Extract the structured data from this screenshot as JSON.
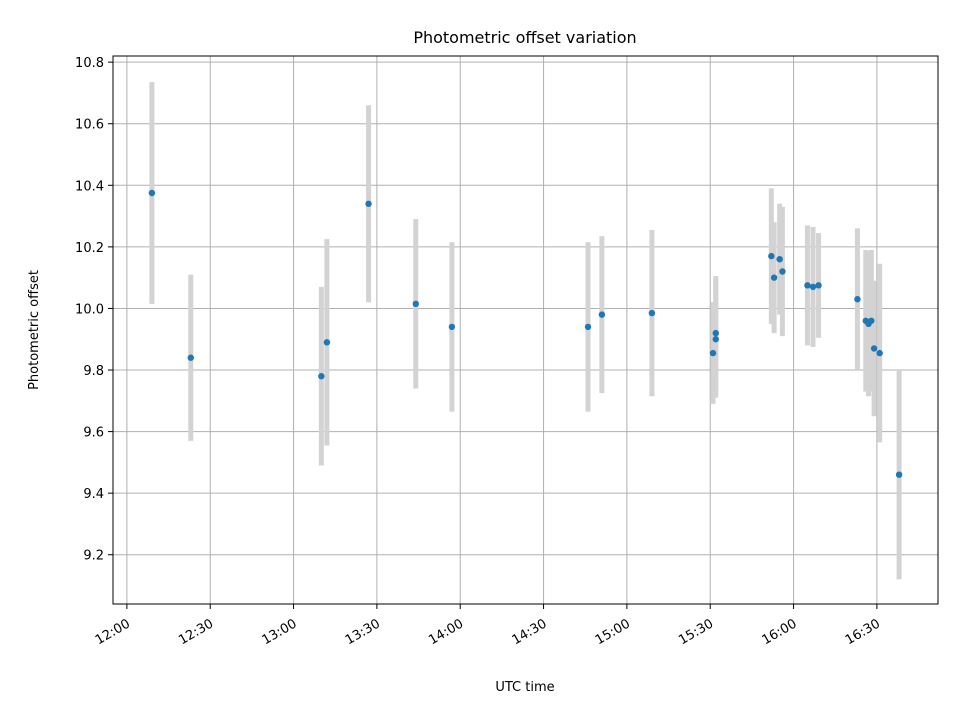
{
  "chart_data": {
    "type": "scatter",
    "title": "Photometric offset variation",
    "xlabel": "UTC time",
    "ylabel": "Photometric offset",
    "x_ticks": [
      "12:00",
      "12:30",
      "13:00",
      "13:30",
      "14:00",
      "14:30",
      "15:00",
      "15:30",
      "16:00",
      "16:30"
    ],
    "y_ticks": [
      "9.2",
      "9.4",
      "9.6",
      "9.8",
      "10.0",
      "10.2",
      "10.4",
      "10.6",
      "10.8"
    ],
    "xlim": [
      "11:55",
      "16:52"
    ],
    "ylim": [
      9.04,
      10.82
    ],
    "grid": true,
    "marker_color": "#1f77b4",
    "errorbar_color": "#d3d3d3",
    "points": [
      {
        "x": "12:09",
        "y": 10.375,
        "err": 0.36
      },
      {
        "x": "12:23",
        "y": 9.84,
        "err": 0.27
      },
      {
        "x": "13:10",
        "y": 9.78,
        "err": 0.29
      },
      {
        "x": "13:12",
        "y": 9.89,
        "err": 0.335
      },
      {
        "x": "13:27",
        "y": 10.34,
        "err": 0.32
      },
      {
        "x": "13:44",
        "y": 10.015,
        "err": 0.275
      },
      {
        "x": "13:57",
        "y": 9.94,
        "err": 0.275
      },
      {
        "x": "14:46",
        "y": 9.94,
        "err": 0.275
      },
      {
        "x": "14:51",
        "y": 9.98,
        "err": 0.255
      },
      {
        "x": "15:09",
        "y": 9.985,
        "err": 0.27
      },
      {
        "x": "15:31",
        "y": 9.855,
        "err": 0.165
      },
      {
        "x": "15:32",
        "y": 9.92,
        "err": 0.185
      },
      {
        "x": "15:32",
        "y": 9.9,
        "err": 0.19
      },
      {
        "x": "15:52",
        "y": 10.17,
        "err": 0.22
      },
      {
        "x": "15:53",
        "y": 10.1,
        "err": 0.18
      },
      {
        "x": "15:55",
        "y": 10.16,
        "err": 0.18
      },
      {
        "x": "15:56",
        "y": 10.12,
        "err": 0.21
      },
      {
        "x": "16:05",
        "y": 10.075,
        "err": 0.195
      },
      {
        "x": "16:07",
        "y": 10.07,
        "err": 0.195
      },
      {
        "x": "16:09",
        "y": 10.075,
        "err": 0.17
      },
      {
        "x": "16:23",
        "y": 10.03,
        "err": 0.23
      },
      {
        "x": "16:26",
        "y": 9.96,
        "err": 0.23
      },
      {
        "x": "16:27",
        "y": 9.95,
        "err": 0.235
      },
      {
        "x": "16:28",
        "y": 9.96,
        "err": 0.23
      },
      {
        "x": "16:29",
        "y": 9.87,
        "err": 0.22
      },
      {
        "x": "16:31",
        "y": 9.855,
        "err": 0.29
      },
      {
        "x": "16:38",
        "y": 9.46,
        "err": 0.34
      }
    ]
  }
}
